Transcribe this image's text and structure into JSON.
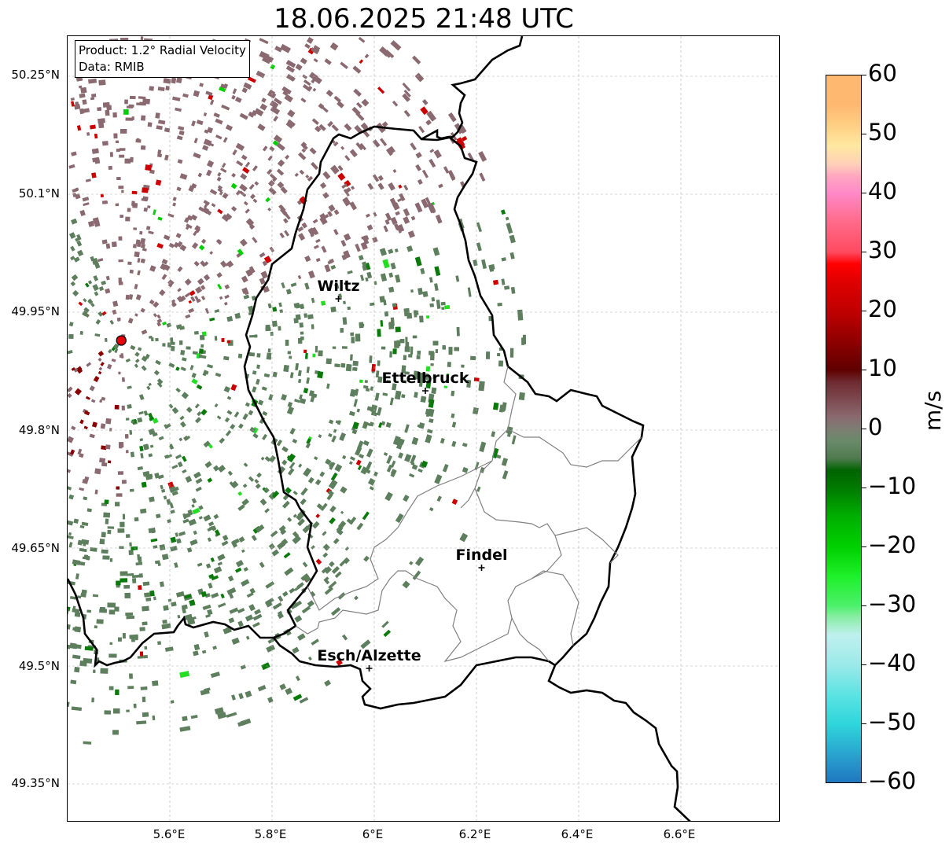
{
  "title": "18.06.2025 21:48 UTC",
  "info": {
    "product": "Product: 1.2° Radial Velocity",
    "data": "Data: RMIB"
  },
  "axes": {
    "lat_ticks": [
      "50.25°N",
      "50.1°N",
      "49.95°N",
      "49.8°N",
      "49.65°N",
      "49.5°N",
      "49.35°N"
    ],
    "lon_ticks": [
      "5.6°E",
      "5.8°E",
      "6°E",
      "6.2°E",
      "6.4°E",
      "6.6°E"
    ]
  },
  "cities": [
    {
      "name": "Wiltz",
      "lon": 5.93,
      "lat": 49.967
    },
    {
      "name": "Ettelbruck",
      "lon": 6.1,
      "lat": 49.85
    },
    {
      "name": "Findel",
      "lon": 6.21,
      "lat": 49.625
    },
    {
      "name": "Esch/Alzette",
      "lon": 5.99,
      "lat": 49.497
    }
  ],
  "radar_site": {
    "lon": 5.505,
    "lat": 49.914,
    "color": "#e8000b"
  },
  "colorbar": {
    "unit": "m/s",
    "ticks": [
      "60",
      "50",
      "40",
      "30",
      "20",
      "10",
      "0",
      "−10",
      "−20",
      "−30",
      "−40",
      "−50",
      "−60"
    ],
    "min": -60,
    "max": 60
  },
  "colors": {
    "outbound_muted": "#8a6a70",
    "inbound_muted": "#5e7f5e",
    "strong_out": "#a80000",
    "strong_in": "#0a7a0a"
  }
}
